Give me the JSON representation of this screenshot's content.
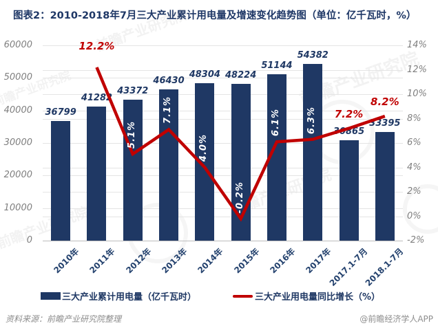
{
  "title": "图表2：2010-2018年7月三大产业累计用电量及增速变化趋势图（单位：亿千瓦时，%）",
  "chart_data": {
    "type": "bar",
    "subtype": "combo-bar-line-dual-axis",
    "categories": [
      "2010年",
      "2011年",
      "2012年",
      "2013年",
      "2014年",
      "2015年",
      "2016年",
      "2017年",
      "2017.1-7月",
      "2018.1-7月"
    ],
    "series": [
      {
        "name": "三大产业累计用电量（亿千瓦时）",
        "type": "bar",
        "axis": "left",
        "color": "#1F3864",
        "values": [
          36799,
          41282,
          43372,
          46430,
          48304,
          48224,
          51144,
          54382,
          30865,
          33395
        ],
        "labels": [
          "36799",
          "41282",
          "43372",
          "46430",
          "48304",
          "48224",
          "51144",
          "54382",
          "30865",
          "33395"
        ]
      },
      {
        "name": "三大产业用电量同比增长（%）",
        "type": "line",
        "axis": "right",
        "color": "#C00000",
        "values": [
          null,
          12.2,
          5.1,
          7.1,
          4.0,
          -0.2,
          6.1,
          6.3,
          7.2,
          8.2
        ],
        "labels": [
          null,
          {
            "text": "12.2%",
            "style": "red"
          },
          {
            "text": "5.1%",
            "style": "white"
          },
          {
            "text": "7.1%",
            "style": "white"
          },
          {
            "text": "4.0%",
            "style": "white"
          },
          {
            "text": "-0.2%",
            "style": "white"
          },
          {
            "text": "6.1%",
            "style": "white"
          },
          {
            "text": "6.3%",
            "style": "white"
          },
          {
            "text": "7.2%",
            "style": "red"
          },
          {
            "text": "8.2%",
            "style": "red"
          }
        ]
      }
    ],
    "left_axis": {
      "min": 0,
      "max": 60000,
      "step": 10000,
      "ticks": [
        "0",
        "10000",
        "20000",
        "30000",
        "40000",
        "50000",
        "60000"
      ]
    },
    "right_axis": {
      "min": -2,
      "max": 14,
      "step": 2,
      "ticks": [
        "-2%",
        "0%",
        "2%",
        "4%",
        "6%",
        "8%",
        "10%",
        "12%",
        "14%"
      ]
    },
    "grid": true,
    "legend_position": "bottom",
    "title": "图表2：2010-2018年7月三大产业累计用电量及增速变化趋势图（单位：亿千瓦时，%）"
  },
  "footer": {
    "source": "资料来源：前瞻产业研究院整理",
    "credit": "@前瞻经济学人APP"
  },
  "watermark": {
    "text": "前瞻产业研究院"
  },
  "colors": {
    "bar": "#1F3864",
    "line": "#C00000",
    "title": "#1E3766",
    "axis_text": "#7F7F7F",
    "category_text": "#24426E"
  }
}
